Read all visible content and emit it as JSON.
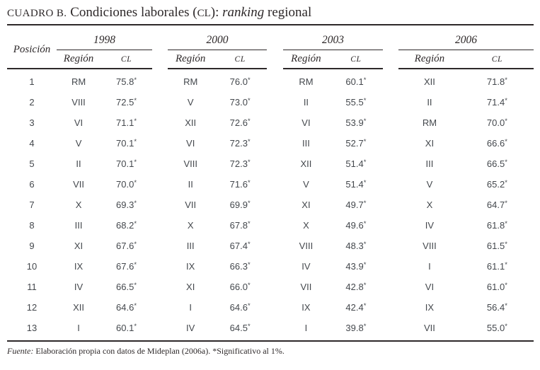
{
  "title": {
    "label": "CUADRO B.",
    "main": " Condiciones laborales (",
    "acronym": "CL",
    "after_acronym": "): ",
    "italic": "ranking",
    "rest": " regional"
  },
  "header": {
    "position": "Posición",
    "region": "Región",
    "cl": "CL"
  },
  "years": [
    "1998",
    "2000",
    "2003",
    "2006"
  ],
  "positions": [
    "1",
    "2",
    "3",
    "4",
    "5",
    "6",
    "7",
    "8",
    "9",
    "10",
    "11",
    "12",
    "13"
  ],
  "rankings": [
    {
      "year": "1998",
      "rows": [
        {
          "region": "RM",
          "cl": "75.8*"
        },
        {
          "region": "VIII",
          "cl": "72.5*"
        },
        {
          "region": "VI",
          "cl": "71.1*"
        },
        {
          "region": "V",
          "cl": "70.1*"
        },
        {
          "region": "II",
          "cl": "70.1*"
        },
        {
          "region": "VII",
          "cl": "70.0*"
        },
        {
          "region": "X",
          "cl": "69.3*"
        },
        {
          "region": "III",
          "cl": "68.2*"
        },
        {
          "region": "XI",
          "cl": "67.6*"
        },
        {
          "region": "IX",
          "cl": "67.6*"
        },
        {
          "region": "IV",
          "cl": "66.5*"
        },
        {
          "region": "XII",
          "cl": "64.6*"
        },
        {
          "region": "I",
          "cl": "60.1*"
        }
      ]
    },
    {
      "year": "2000",
      "rows": [
        {
          "region": "RM",
          "cl": "76.0*"
        },
        {
          "region": "V",
          "cl": "73.0*"
        },
        {
          "region": "XII",
          "cl": "72.6*"
        },
        {
          "region": "VI",
          "cl": "72.3*"
        },
        {
          "region": "VIII",
          "cl": "72.3*"
        },
        {
          "region": "II",
          "cl": "71.6*"
        },
        {
          "region": "VII",
          "cl": "69.9*"
        },
        {
          "region": "X",
          "cl": "67.8*"
        },
        {
          "region": "III",
          "cl": "67.4*"
        },
        {
          "region": "IX",
          "cl": "66.3*"
        },
        {
          "region": "XI",
          "cl": "66.0*"
        },
        {
          "region": "I",
          "cl": "64.6*"
        },
        {
          "region": "IV",
          "cl": "64.5*"
        }
      ]
    },
    {
      "year": "2003",
      "rows": [
        {
          "region": "RM",
          "cl": "60.1*"
        },
        {
          "region": "II",
          "cl": "55.5*"
        },
        {
          "region": "VI",
          "cl": "53.9*"
        },
        {
          "region": "III",
          "cl": "52.7*"
        },
        {
          "region": "XII",
          "cl": "51.4*"
        },
        {
          "region": "V",
          "cl": "51.4*"
        },
        {
          "region": "XI",
          "cl": "49.7*"
        },
        {
          "region": "X",
          "cl": "49.6*"
        },
        {
          "region": "VIII",
          "cl": "48.3*"
        },
        {
          "region": "IV",
          "cl": "43.9*"
        },
        {
          "region": "VII",
          "cl": "42.8*"
        },
        {
          "region": "IX",
          "cl": "42.4*"
        },
        {
          "region": "I",
          "cl": "39.8*"
        }
      ]
    },
    {
      "year": "2006",
      "rows": [
        {
          "region": "XII",
          "cl": "71.8*"
        },
        {
          "region": "II",
          "cl": "71.4*"
        },
        {
          "region": "RM",
          "cl": "70.0*"
        },
        {
          "region": "XI",
          "cl": "66.6*"
        },
        {
          "region": "III",
          "cl": "66.5*"
        },
        {
          "region": "V",
          "cl": "65.2*"
        },
        {
          "region": "X",
          "cl": "64.7*"
        },
        {
          "region": "IV",
          "cl": "61.8*"
        },
        {
          "region": "VIII",
          "cl": "61.5*"
        },
        {
          "region": "I",
          "cl": "61.1*"
        },
        {
          "region": "VI",
          "cl": "61.0*"
        },
        {
          "region": "IX",
          "cl": "56.4*"
        },
        {
          "region": "VII",
          "cl": "55.0*"
        }
      ]
    }
  ],
  "footer": {
    "source_label": "Fuente:",
    "source_text": " Elaboración propia con datos de Mideplan (2006a). *Significativo al 1%."
  },
  "colors": {
    "ink": "#2d2829",
    "data_text": "#44484d",
    "background": "#ffffff"
  }
}
